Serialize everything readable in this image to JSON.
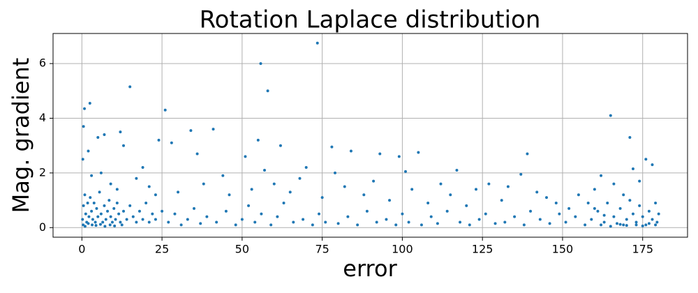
{
  "chart_data": {
    "type": "scatter",
    "title": "Rotation Laplace distribution",
    "xlabel": "error",
    "ylabel": "Mag. gradient",
    "color": "#1f77b4",
    "grid": true,
    "xlim": [
      -9,
      189
    ],
    "ylim": [
      -0.35,
      7.1
    ],
    "xticks": [
      0,
      25,
      50,
      75,
      100,
      125,
      150,
      175
    ],
    "yticks": [
      0,
      2,
      4,
      6
    ],
    "x": [
      0.5,
      0.8,
      2.5,
      15,
      26,
      55.8,
      58,
      73.5,
      165,
      171,
      34,
      41,
      12,
      7,
      5,
      13,
      24,
      28,
      55,
      62,
      51,
      78,
      84,
      93,
      99,
      105,
      139,
      176,
      178,
      0.3,
      2,
      44,
      70,
      79,
      101,
      117,
      137,
      162,
      172,
      36,
      3,
      6,
      9,
      11,
      17,
      19,
      21,
      23,
      30,
      38,
      46,
      53,
      57,
      60,
      65,
      68,
      75,
      82,
      88,
      91,
      96,
      103,
      108,
      112,
      115,
      120,
      123,
      127,
      131,
      133,
      142,
      145,
      148,
      152,
      155,
      158,
      160,
      166,
      169,
      174,
      0.2,
      0.5,
      0.9,
      1.2,
      1.5,
      1.8,
      2.2,
      2.6,
      3.0,
      3.4,
      3.8,
      4.2,
      4.6,
      5.0,
      5.5,
      6.0,
      6.5,
      7.0,
      7.5,
      8.0,
      8.5,
      9.0,
      9.5,
      10,
      10.5,
      11,
      11.5,
      12,
      13,
      14,
      15,
      16,
      17,
      18,
      19,
      20,
      21,
      22,
      23,
      25,
      0.4,
      1.0,
      2.0,
      3.2,
      4.4,
      5.8,
      7.2,
      8.8,
      10.2,
      12.5,
      27,
      29,
      31,
      33,
      35,
      37,
      39,
      42,
      45,
      48,
      50,
      52,
      54,
      56,
      59,
      61,
      63,
      66,
      69,
      72,
      74,
      76,
      80,
      83,
      86,
      89,
      92,
      95,
      98,
      100,
      102,
      106,
      109,
      111,
      114,
      118,
      121,
      124,
      126,
      129,
      132,
      135,
      138,
      140,
      143,
      146,
      149,
      151,
      154,
      157,
      159,
      161,
      163,
      164,
      166,
      167,
      168,
      170,
      171,
      172,
      173,
      174,
      175,
      176,
      177,
      178,
      179,
      179.5,
      180,
      169,
      162,
      165,
      168,
      170,
      173,
      175,
      177,
      179,
      160,
      163
    ],
    "values": [
      3.7,
      4.35,
      4.55,
      5.15,
      4.3,
      6.0,
      5.0,
      6.75,
      4.1,
      3.3,
      3.55,
      3.6,
      3.5,
      3.4,
      3.3,
      3.0,
      3.2,
      3.1,
      3.2,
      3.0,
      2.6,
      2.95,
      2.8,
      2.7,
      2.6,
      2.75,
      2.7,
      2.5,
      2.3,
      2.5,
      2.8,
      1.9,
      2.2,
      2.0,
      2.05,
      2.1,
      1.95,
      1.9,
      2.15,
      2.7,
      1.9,
      2.0,
      1.6,
      1.4,
      1.8,
      2.2,
      1.5,
      1.2,
      1.3,
      1.6,
      1.2,
      1.4,
      2.1,
      1.6,
      1.3,
      1.8,
      1.1,
      1.5,
      1.2,
      1.7,
      1.0,
      1.4,
      0.9,
      1.6,
      1.2,
      0.8,
      1.4,
      1.6,
      1.0,
      1.5,
      1.3,
      1.1,
      0.9,
      0.7,
      1.2,
      0.9,
      1.4,
      1.6,
      1.2,
      1.7,
      0.3,
      0.8,
      1.2,
      0.5,
      0.2,
      0.9,
      0.4,
      1.1,
      0.6,
      0.3,
      0.9,
      0.2,
      0.7,
      0.4,
      1.3,
      0.5,
      0.2,
      0.8,
      0.3,
      0.6,
      1.0,
      0.4,
      0.2,
      0.7,
      0.3,
      0.9,
      0.5,
      0.2,
      0.6,
      0.3,
      0.8,
      0.4,
      0.2,
      0.6,
      0.3,
      0.9,
      0.2,
      0.5,
      0.3,
      0.6,
      0.1,
      0.05,
      0.15,
      0.1,
      0.08,
      0.12,
      0.05,
      0.1,
      0.06,
      0.1,
      0.2,
      0.5,
      0.1,
      0.3,
      0.7,
      0.15,
      0.4,
      0.2,
      0.6,
      0.1,
      0.3,
      0.8,
      0.2,
      0.5,
      0.1,
      0.4,
      0.9,
      0.2,
      0.3,
      0.1,
      0.5,
      0.2,
      0.15,
      0.4,
      0.1,
      0.6,
      0.2,
      0.3,
      0.1,
      0.5,
      0.2,
      0.1,
      0.4,
      0.15,
      0.6,
      0.2,
      0.1,
      0.3,
      0.5,
      0.15,
      0.2,
      0.4,
      0.1,
      0.6,
      0.3,
      0.15,
      0.5,
      0.2,
      0.4,
      0.1,
      0.3,
      0.6,
      0.2,
      0.9,
      0.4,
      0.15,
      0.7,
      0.3,
      1.0,
      0.5,
      0.2,
      0.8,
      0.4,
      0.1,
      0.6,
      0.3,
      0.9,
      0.2,
      0.5,
      0.1,
      0.1,
      0.05,
      0.12,
      0.08,
      0.1,
      0.06,
      0.15,
      0.1,
      0.7,
      0.45
    ]
  }
}
